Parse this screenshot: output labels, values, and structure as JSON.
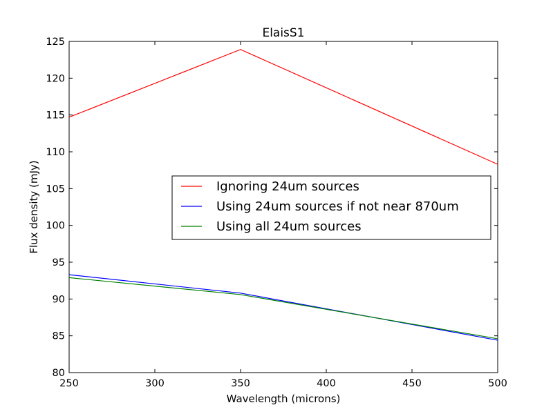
{
  "chart_data": {
    "type": "line",
    "title": "ElaisS1",
    "xlabel": "Wavelength (microns)",
    "ylabel": "Flux density (mJy)",
    "xlim": [
      250,
      500
    ],
    "ylim": [
      80,
      125
    ],
    "xticks": [
      250,
      300,
      350,
      400,
      450,
      500
    ],
    "yticks": [
      80,
      85,
      90,
      95,
      100,
      105,
      110,
      115,
      120,
      125
    ],
    "x": [
      250,
      350,
      500
    ],
    "grid": false,
    "legend_position": "center-right",
    "series": [
      {
        "name": "Ignoring 24um sources",
        "color": "#ff0000",
        "values": [
          114.7,
          123.9,
          108.3
        ]
      },
      {
        "name": "Using 24um sources if not near 870um",
        "color": "#0000ff",
        "values": [
          93.3,
          90.8,
          84.4
        ]
      },
      {
        "name": "Using all 24um sources",
        "color": "#008000",
        "values": [
          92.9,
          90.6,
          84.6
        ]
      }
    ]
  }
}
